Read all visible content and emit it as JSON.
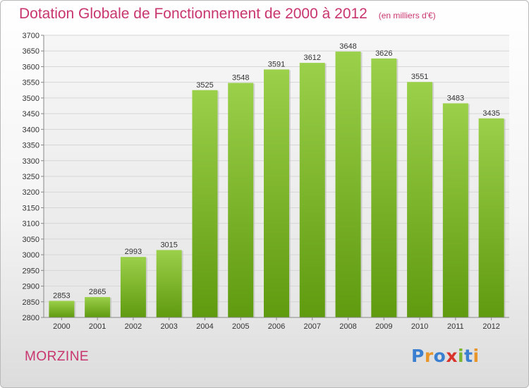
{
  "header": {
    "title": "Dotation Globale de Fonctionnement de 2000 à 2012",
    "subtitle": "(en milliers d'€)"
  },
  "footer": {
    "commune": "MORZINE",
    "logo_text": "Proxiti"
  },
  "colors": {
    "title": "#c8356e",
    "bar_top": "#9bd04a",
    "bar_bottom": "#5f9a0f",
    "logo_letters": [
      "#3a7fd0",
      "#e8952a",
      "#3a7fd0",
      "#d9342b",
      "#7cb52e",
      "#3a7fd0",
      "#e8952a"
    ]
  },
  "chart_data": {
    "type": "bar",
    "categories": [
      "2000",
      "2001",
      "2002",
      "2003",
      "2004",
      "2005",
      "2006",
      "2007",
      "2008",
      "2009",
      "2010",
      "2011",
      "2012"
    ],
    "values": [
      2853,
      2865,
      2993,
      3015,
      3525,
      3548,
      3591,
      3612,
      3648,
      3626,
      3551,
      3483,
      3435
    ],
    "ylim": [
      2800,
      3700
    ],
    "yticks": [
      2800,
      2850,
      2900,
      2950,
      3000,
      3050,
      3100,
      3150,
      3200,
      3250,
      3300,
      3350,
      3400,
      3450,
      3500,
      3550,
      3600,
      3650,
      3700
    ],
    "grid": true,
    "xlabel": "",
    "ylabel": ""
  }
}
